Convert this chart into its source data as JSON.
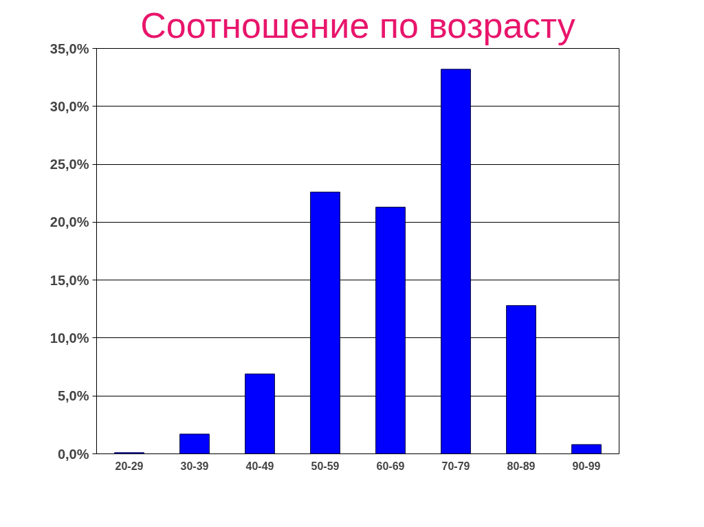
{
  "chart_data": {
    "type": "bar",
    "title": "Соотношение по возрасту",
    "categories": [
      "20-29",
      "30-39",
      "40-49",
      "50-59",
      "60-69",
      "70-79",
      "80-89",
      "90-99"
    ],
    "values": [
      0.1,
      1.7,
      6.9,
      22.6,
      21.3,
      33.2,
      12.8,
      0.8
    ],
    "color": "#0000ff",
    "ylim": [
      0,
      35
    ],
    "yticks": [
      {
        "value": 0,
        "label": "0,0%"
      },
      {
        "value": 5,
        "label": "5,0%"
      },
      {
        "value": 10,
        "label": "10,0%"
      },
      {
        "value": 15,
        "label": "15,0%"
      },
      {
        "value": 20,
        "label": "20,0%"
      },
      {
        "value": 25,
        "label": "25,0%"
      },
      {
        "value": 30,
        "label": "30,0%"
      },
      {
        "value": 35,
        "label": "35,0%"
      }
    ],
    "grid": "y"
  }
}
